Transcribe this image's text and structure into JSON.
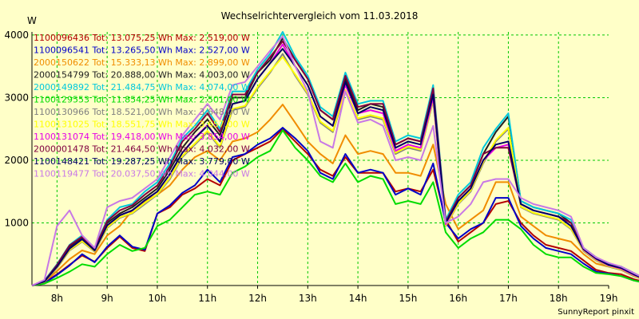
{
  "chart_data": {
    "type": "line",
    "title": "Wechselrichtervergleich vom 11.03.2018",
    "ylabel": "W",
    "credit": "SunnyReport pinxit",
    "x_ticks": [
      "8h",
      "9h",
      "10h",
      "11h",
      "12h",
      "13h",
      "14h",
      "15h",
      "16h",
      "17h",
      "18h",
      "19h"
    ],
    "y_ticks": [
      1000,
      2000,
      3000,
      4000
    ],
    "xlim": [
      7.5,
      19.0
    ],
    "ylim": [
      0,
      4050
    ],
    "x_step_hours": 0.25,
    "grid": true,
    "legend_position": "top-left",
    "series": [
      {
        "name": "1100096436 Tot: 13.075,25 Wh Max: 2.519,00 W",
        "color": "#b40000",
        "x_start": 7.5,
        "values": [
          0,
          50,
          180,
          330,
          480,
          380,
          600,
          780,
          600,
          550,
          1150,
          1250,
          1450,
          1550,
          1700,
          1600,
          2000,
          2100,
          2200,
          2300,
          2500,
          2300,
          2100,
          1850,
          1750,
          2050,
          1800,
          1800,
          1800,
          1500,
          1550,
          1500,
          1850,
          1050,
          700,
          850,
          1000,
          1300,
          1350,
          1000,
          800,
          650,
          600,
          550,
          400,
          250,
          200,
          180,
          100,
          50,
          20,
          0
        ]
      },
      {
        "name": "1100096541 Tot: 13.265,50 Wh Max: 2.527,00 W",
        "color": "#0000c8",
        "x_start": 7.5,
        "values": [
          0,
          40,
          170,
          320,
          500,
          370,
          620,
          800,
          620,
          570,
          1150,
          1280,
          1480,
          1600,
          1850,
          1650,
          2050,
          2100,
          2250,
          2350,
          2520,
          2350,
          2150,
          1800,
          1700,
          2100,
          1800,
          1850,
          1800,
          1450,
          1550,
          1450,
          1950,
          1000,
          750,
          900,
          1000,
          1400,
          1400,
          950,
          750,
          600,
          550,
          500,
          350,
          220,
          190,
          150,
          80,
          40,
          15,
          0
        ]
      },
      {
        "name": "2000150622 Tot: 15.333,13 Wh Max: 2.899,00 W",
        "color": "#f08c00",
        "x_start": 7.5,
        "values": [
          0,
          60,
          230,
          420,
          560,
          500,
          800,
          950,
          1200,
          1350,
          1450,
          1600,
          1850,
          2050,
          2150,
          2000,
          2300,
          2350,
          2450,
          2650,
          2890,
          2600,
          2300,
          2100,
          1950,
          2400,
          2100,
          2150,
          2100,
          1800,
          1800,
          1750,
          2250,
          1300,
          900,
          1050,
          1200,
          1650,
          1650,
          1100,
          950,
          800,
          750,
          700,
          500,
          350,
          300,
          250,
          150,
          80,
          30,
          0
        ]
      },
      {
        "name": "2000154799 Tot: 20.888,00 Wh Max: 4.003,00 W",
        "color": "#202020",
        "x_start": 7.5,
        "values": [
          0,
          70,
          320,
          620,
          760,
          580,
          1000,
          1150,
          1250,
          1400,
          1550,
          1850,
          2200,
          2450,
          2650,
          2400,
          3000,
          3000,
          3400,
          3600,
          3950,
          3600,
          3300,
          2800,
          2650,
          3300,
          2800,
          2900,
          2850,
          2250,
          2350,
          2300,
          3100,
          1000,
          1400,
          1600,
          2100,
          2450,
          2700,
          1350,
          1250,
          1200,
          1150,
          1000,
          600,
          450,
          350,
          300,
          200,
          100,
          40,
          0
        ]
      },
      {
        "name": "2000149892 Tot: 21.484,75 Wh Max: 4.074,00 W",
        "color": "#00c8dc",
        "x_start": 7.5,
        "values": [
          0,
          80,
          340,
          650,
          800,
          600,
          1050,
          1250,
          1300,
          1500,
          1650,
          1950,
          2350,
          2550,
          2800,
          2500,
          3100,
          3100,
          3450,
          3700,
          4050,
          3650,
          3350,
          2850,
          2700,
          3400,
          2900,
          2950,
          2950,
          2300,
          2400,
          2350,
          3200,
          1050,
          1450,
          1650,
          2200,
          2500,
          2750,
          1350,
          1250,
          1200,
          1150,
          1050,
          600,
          450,
          350,
          300,
          200,
          100,
          40,
          0
        ]
      },
      {
        "name": "1100129553 Tot: 11.854,25 Wh Max: 2.501,00 W",
        "color": "#00dc00",
        "x_start": 7.5,
        "values": [
          0,
          30,
          120,
          220,
          340,
          300,
          500,
          650,
          550,
          600,
          950,
          1050,
          1250,
          1450,
          1500,
          1450,
          1800,
          1900,
          2050,
          2150,
          2480,
          2200,
          2000,
          1750,
          1650,
          1950,
          1650,
          1750,
          1700,
          1300,
          1350,
          1300,
          1650,
          850,
          600,
          750,
          850,
          1050,
          1050,
          900,
          650,
          500,
          450,
          450,
          300,
          200,
          180,
          150,
          80,
          40,
          15,
          0
        ]
      },
      {
        "name": "1100130966 Tot: 18.521,00 Wh Max: 3.648,00 W",
        "color": "#808080",
        "x_start": 7.5,
        "values": [
          0,
          60,
          280,
          560,
          700,
          540,
          920,
          1080,
          1150,
          1300,
          1450,
          1700,
          2050,
          2250,
          2450,
          2200,
          2800,
          2850,
          3150,
          3400,
          3700,
          3350,
          3050,
          2600,
          2450,
          3100,
          2650,
          2700,
          2650,
          2100,
          2200,
          2150,
          2950,
          950,
          1300,
          1500,
          1950,
          2300,
          2500,
          1250,
          1150,
          1100,
          1050,
          900,
          550,
          400,
          300,
          250,
          150,
          80,
          30,
          0
        ]
      },
      {
        "name": "1100131025 Tot: 18.551,75 Wh Max: 3.657,00 W",
        "color": "#ffff00",
        "x_start": 7.5,
        "values": [
          0,
          60,
          290,
          570,
          710,
          550,
          930,
          1090,
          1160,
          1320,
          1460,
          1720,
          2070,
          2270,
          2470,
          2220,
          2820,
          2870,
          3170,
          3420,
          3650,
          3370,
          3070,
          2620,
          2470,
          3120,
          2670,
          2720,
          2670,
          2120,
          2220,
          2170,
          2970,
          960,
          1310,
          1520,
          1970,
          2320,
          2520,
          1260,
          1160,
          1110,
          1060,
          910,
          560,
          410,
          310,
          260,
          160,
          80,
          30,
          0
        ]
      },
      {
        "name": "1100131074 Tot: 19.418,00 Wh Max: 3.854,00 W",
        "color": "#e600e6",
        "x_start": 7.5,
        "values": [
          0,
          65,
          300,
          590,
          740,
          560,
          960,
          1120,
          1200,
          1360,
          1500,
          1780,
          2120,
          2360,
          2560,
          2300,
          2900,
          2950,
          3300,
          3550,
          3850,
          3500,
          3200,
          2700,
          2550,
          3200,
          2750,
          2800,
          2750,
          2150,
          2250,
          2200,
          3000,
          980,
          1350,
          1550,
          2000,
          2200,
          2250,
          1300,
          1200,
          1150,
          1100,
          950,
          570,
          420,
          320,
          270,
          170,
          90,
          35,
          0
        ]
      },
      {
        "name": "2000001478 Tot: 21.464,50 Wh Max: 4.032,00 W",
        "color": "#800040",
        "x_start": 7.5,
        "values": [
          0,
          70,
          330,
          640,
          780,
          590,
          1030,
          1200,
          1280,
          1450,
          1600,
          1900,
          2300,
          2500,
          2750,
          2450,
          3050,
          3050,
          3400,
          3650,
          3900,
          3600,
          3300,
          2800,
          2650,
          3350,
          2850,
          2900,
          2900,
          2250,
          2350,
          2300,
          3150,
          1020,
          1400,
          1600,
          2100,
          2200,
          2200,
          1300,
          1200,
          1150,
          1100,
          1000,
          580,
          430,
          330,
          280,
          180,
          90,
          35,
          0
        ]
      },
      {
        "name": "1100148421 Tot: 19.287,25 Wh Max: 3.779,00 W",
        "color": "#000064",
        "x_start": 7.5,
        "values": [
          0,
          65,
          300,
          590,
          740,
          560,
          960,
          1120,
          1200,
          1360,
          1500,
          1780,
          2120,
          2350,
          2550,
          2300,
          2900,
          2950,
          3300,
          3550,
          3780,
          3500,
          3200,
          2700,
          2550,
          3250,
          2750,
          2850,
          2800,
          2200,
          2300,
          2250,
          3050,
          1000,
          1350,
          1550,
          2000,
          2250,
          2300,
          1300,
          1200,
          1150,
          1100,
          950,
          580,
          430,
          330,
          280,
          180,
          90,
          35,
          0
        ]
      },
      {
        "name": "1100119477 Tot: 20.037,50 Wh Max: 4.044,00 W",
        "color": "#c878e6",
        "x_start": 7.5,
        "values": [
          0,
          90,
          950,
          1200,
          800,
          600,
          1250,
          1350,
          1400,
          1550,
          1700,
          2050,
          2400,
          2650,
          2900,
          2650,
          3200,
          3250,
          3500,
          3750,
          3980,
          3500,
          3100,
          2300,
          2200,
          3100,
          2600,
          2650,
          2550,
          2000,
          2050,
          2000,
          2550,
          1000,
          1100,
          1300,
          1650,
          1700,
          1700,
          1400,
          1300,
          1250,
          1200,
          1100,
          600,
          450,
          360,
          300,
          200,
          100,
          40,
          0
        ]
      }
    ]
  }
}
